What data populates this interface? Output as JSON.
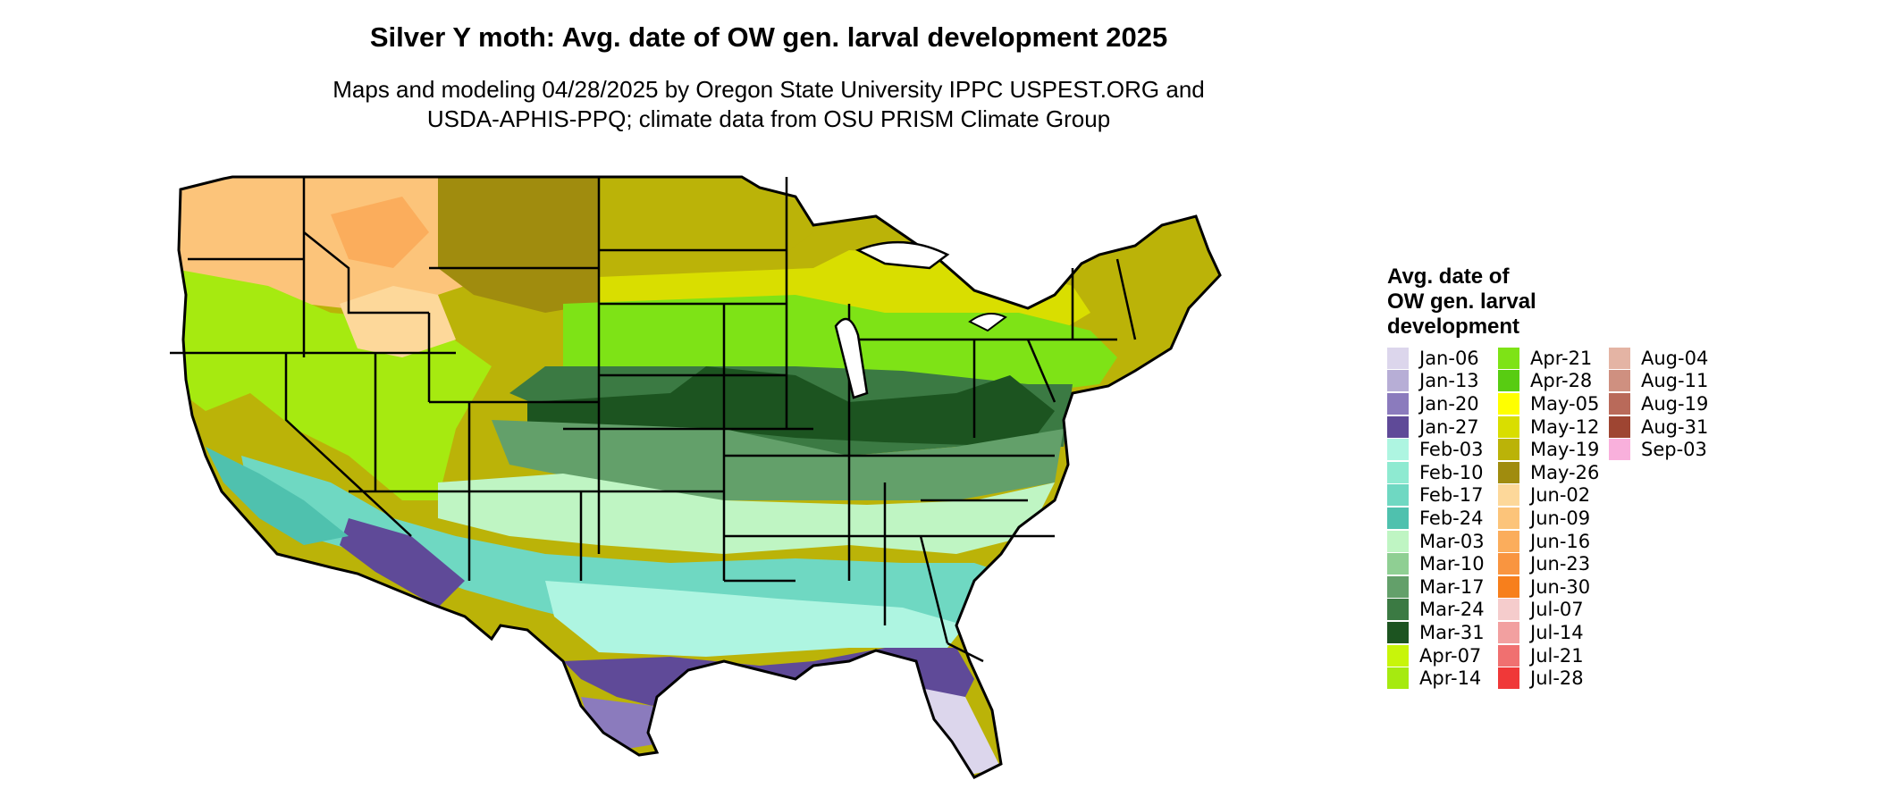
{
  "title": "Silver Y moth: Avg. date of OW gen. larval development 2025",
  "subtitle_line1": "Maps and modeling 04/28/2025 by Oregon State University IPPC USPEST.ORG and",
  "subtitle_line2": "USDA-APHIS-PPQ; climate data from OSU PRISM Climate Group",
  "legend": {
    "title_line1": "Avg. date of",
    "title_line2": "OW gen. larval",
    "title_line3": "development",
    "columns": [
      [
        {
          "label": "Jan-06",
          "color": "#dcd6ec"
        },
        {
          "label": "Jan-13",
          "color": "#b7aed6"
        },
        {
          "label": "Jan-20",
          "color": "#8b7bbd"
        },
        {
          "label": "Jan-27",
          "color": "#5f4a98"
        },
        {
          "label": "Feb-03",
          "color": "#aef5e1"
        },
        {
          "label": "Feb-10",
          "color": "#8eead1"
        },
        {
          "label": "Feb-17",
          "color": "#6fd8c2"
        },
        {
          "label": "Feb-24",
          "color": "#4fc1ae"
        },
        {
          "label": "Mar-03",
          "color": "#bff5c3"
        },
        {
          "label": "Mar-10",
          "color": "#8fcf93"
        },
        {
          "label": "Mar-17",
          "color": "#63a06a"
        },
        {
          "label": "Mar-24",
          "color": "#3b7a43"
        },
        {
          "label": "Mar-31",
          "color": "#1c5420"
        },
        {
          "label": "Apr-07",
          "color": "#c8f50a"
        },
        {
          "label": "Apr-14",
          "color": "#a6ea10"
        }
      ],
      [
        {
          "label": "Apr-21",
          "color": "#7ee316"
        },
        {
          "label": "Apr-28",
          "color": "#58cc12"
        },
        {
          "label": "May-05",
          "color": "#ffff00"
        },
        {
          "label": "May-12",
          "color": "#d9de00"
        },
        {
          "label": "May-19",
          "color": "#bbb308"
        },
        {
          "label": "May-26",
          "color": "#a08c0e"
        },
        {
          "label": "Jun-02",
          "color": "#fdd89a"
        },
        {
          "label": "Jun-09",
          "color": "#fcc47a"
        },
        {
          "label": "Jun-16",
          "color": "#fbad5c"
        },
        {
          "label": "Jun-23",
          "color": "#f99540"
        },
        {
          "label": "Jun-30",
          "color": "#f77f1c"
        },
        {
          "label": "Jul-07",
          "color": "#f5cccc"
        },
        {
          "label": "Jul-14",
          "color": "#f2a0a0"
        },
        {
          "label": "Jul-21",
          "color": "#f07070"
        },
        {
          "label": "Jul-28",
          "color": "#f03838"
        }
      ],
      [
        {
          "label": "Aug-04",
          "color": "#e4b4a4"
        },
        {
          "label": "Aug-11",
          "color": "#cf9080"
        },
        {
          "label": "Aug-19",
          "color": "#b96a5a"
        },
        {
          "label": "Aug-31",
          "color": "#9e4532"
        },
        {
          "label": "Sep-03",
          "color": "#f9b0dc"
        }
      ]
    ]
  }
}
